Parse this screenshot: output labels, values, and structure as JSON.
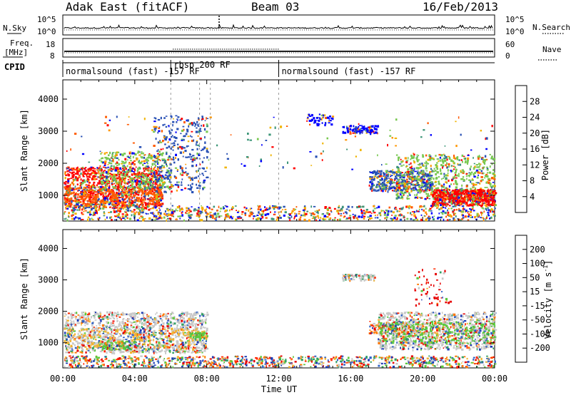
{
  "header": {
    "station": "Adak East (fitACF)",
    "beam": "Beam 03",
    "date": "16/Feb/2013"
  },
  "strips": {
    "nsky_label": "N.Sky",
    "nsky_ticks": [
      "10^5",
      "10^0"
    ],
    "nsearch_label": "N.Search",
    "freq_label_1": "Freq.",
    "freq_label_2": "[MHz]",
    "freq_ticks": [
      "18",
      "8"
    ],
    "nave_label": "Nave",
    "nave_ticks": [
      "60",
      "0"
    ],
    "cpid_label": "CPID"
  },
  "cpid_segments": [
    {
      "start_hour": 0,
      "end_hour": 6,
      "label": "normalsound (fast) -157 RF"
    },
    {
      "start_hour": 6,
      "end_hour": 12,
      "label": "rbsp 200 RF"
    },
    {
      "start_hour": 12,
      "end_hour": 24,
      "label": "normalsound (fast) -157 RF"
    }
  ],
  "chart_data": [
    {
      "type": "heatmap",
      "name": "power",
      "xlabel": "",
      "ylabel": "Slant Range [km]",
      "xlim": [
        0,
        24
      ],
      "ylim": [
        200,
        4600
      ],
      "yticks": [
        1000,
        2000,
        3000,
        4000
      ],
      "colorbar": {
        "label": "Power [dB]",
        "ticks": [
          "28",
          "24",
          "20",
          "16",
          "12",
          "8",
          "4"
        ],
        "colors": [
          "#ff0000",
          "#ff5a00",
          "#ff9600",
          "#f0b400",
          "#78c850",
          "#3c9678",
          "#2850b4",
          "#0000ff"
        ]
      }
    },
    {
      "type": "heatmap",
      "name": "velocity",
      "xlabel": "Time UT",
      "ylabel": "Slant Range [km]",
      "xlim": [
        0,
        24
      ],
      "ylim": [
        200,
        4600
      ],
      "yticks": [
        1000,
        2000,
        3000,
        4000
      ],
      "xticks": [
        "00:00",
        "04:00",
        "08:00",
        "12:00",
        "16:00",
        "20:00",
        "00:00"
      ],
      "colorbar": {
        "label": "Velocity [m s",
        "label_sup": "-1",
        "label_end": "]",
        "ticks": [
          "200",
          "100",
          "50",
          "15",
          "-15",
          "-50",
          "-100",
          "-200"
        ],
        "colors": [
          "#1e3cb4",
          "#3264c8",
          "#32a064",
          "#5ac83c",
          "#c8c8c8",
          "#f0b432",
          "#ff7800",
          "#ff2800",
          "#e60000"
        ]
      }
    }
  ]
}
